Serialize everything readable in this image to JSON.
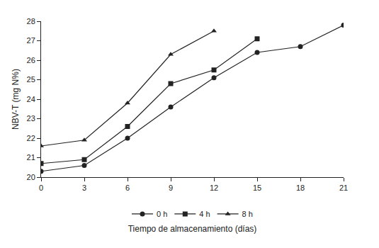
{
  "chart_data": {
    "type": "line",
    "x_label": "Tiempo de almacenamiento (días)",
    "y_label": "NBV-T (mg N%)",
    "x": [
      0,
      3,
      6,
      9,
      12,
      15,
      18,
      21
    ],
    "series": [
      {
        "name": "0 h",
        "color": "#222222",
        "marker": "circle",
        "line_style": "solid",
        "values": [
          20.3,
          20.6,
          22.0,
          23.6,
          25.1,
          26.4,
          26.7,
          27.8
        ]
      },
      {
        "name": "4 h",
        "color": "#222222",
        "marker": "square",
        "line_style": "solid",
        "values": [
          20.7,
          20.9,
          22.6,
          24.8,
          25.5,
          27.1,
          null,
          null
        ]
      },
      {
        "name": "8 h",
        "color": "#222222",
        "marker": "triangle-up",
        "line_style": "solid",
        "values": [
          21.6,
          21.9,
          23.8,
          26.3,
          27.5,
          null,
          null,
          null
        ]
      }
    ],
    "xlim": [
      0,
      21
    ],
    "xticks": [
      0,
      3,
      6,
      9,
      12,
      15,
      18,
      21
    ],
    "ylim": [
      20,
      28
    ],
    "yticks": [
      20,
      21,
      22,
      23,
      24,
      25,
      26,
      27,
      28
    ],
    "grid": false,
    "legend": "bottom"
  }
}
